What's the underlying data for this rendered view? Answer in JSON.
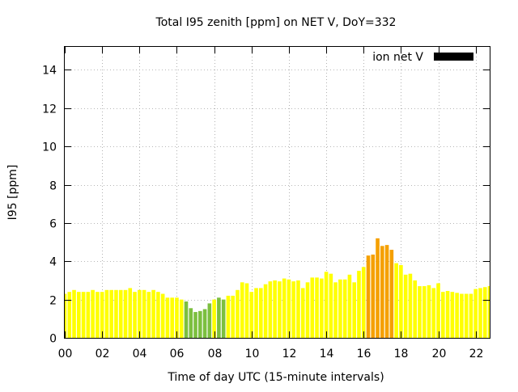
{
  "chart_data": {
    "type": "bar",
    "title": "Total I95 zenith [ppm] on NET V, DoY=332",
    "xlabel": "Time of day UTC (15-minute intervals)",
    "ylabel": "I95 [ppm]",
    "ylim": [
      0,
      15.2
    ],
    "xlim": [
      0,
      22.75
    ],
    "yticks": [
      0,
      2,
      4,
      6,
      8,
      10,
      12,
      14
    ],
    "xticks": [
      0,
      2,
      4,
      6,
      8,
      10,
      12,
      14,
      16,
      18,
      20,
      22
    ],
    "xtick_labels": [
      "00",
      "02",
      "04",
      "06",
      "08",
      "10",
      "12",
      "14",
      "16",
      "18",
      "20",
      "22"
    ],
    "grid": true,
    "legend": {
      "label": "ion net V",
      "color": "#000000",
      "placement": "top-right"
    },
    "bar_interval_hours": 0.25,
    "palette": {
      "yellow": "#ffff00",
      "green": "#7cbf3f",
      "orange": "#f5a000"
    },
    "bars": [
      {
        "x": 0.0,
        "value": 2.3,
        "color": "yellow"
      },
      {
        "x": 0.25,
        "value": 2.4,
        "color": "yellow"
      },
      {
        "x": 0.5,
        "value": 2.5,
        "color": "yellow"
      },
      {
        "x": 0.75,
        "value": 2.4,
        "color": "yellow"
      },
      {
        "x": 1.0,
        "value": 2.4,
        "color": "yellow"
      },
      {
        "x": 1.25,
        "value": 2.4,
        "color": "yellow"
      },
      {
        "x": 1.5,
        "value": 2.5,
        "color": "yellow"
      },
      {
        "x": 1.75,
        "value": 2.4,
        "color": "yellow"
      },
      {
        "x": 2.0,
        "value": 2.4,
        "color": "yellow"
      },
      {
        "x": 2.25,
        "value": 2.5,
        "color": "yellow"
      },
      {
        "x": 2.5,
        "value": 2.5,
        "color": "yellow"
      },
      {
        "x": 2.75,
        "value": 2.5,
        "color": "yellow"
      },
      {
        "x": 3.0,
        "value": 2.5,
        "color": "yellow"
      },
      {
        "x": 3.25,
        "value": 2.5,
        "color": "yellow"
      },
      {
        "x": 3.5,
        "value": 2.6,
        "color": "yellow"
      },
      {
        "x": 3.75,
        "value": 2.4,
        "color": "yellow"
      },
      {
        "x": 4.0,
        "value": 2.5,
        "color": "yellow"
      },
      {
        "x": 4.25,
        "value": 2.5,
        "color": "yellow"
      },
      {
        "x": 4.5,
        "value": 2.4,
        "color": "yellow"
      },
      {
        "x": 4.75,
        "value": 2.5,
        "color": "yellow"
      },
      {
        "x": 5.0,
        "value": 2.4,
        "color": "yellow"
      },
      {
        "x": 5.25,
        "value": 2.3,
        "color": "yellow"
      },
      {
        "x": 5.5,
        "value": 2.1,
        "color": "yellow"
      },
      {
        "x": 5.75,
        "value": 2.1,
        "color": "yellow"
      },
      {
        "x": 6.0,
        "value": 2.1,
        "color": "yellow"
      },
      {
        "x": 6.25,
        "value": 2.0,
        "color": "yellow"
      },
      {
        "x": 6.5,
        "value": 1.9,
        "color": "green"
      },
      {
        "x": 6.75,
        "value": 1.55,
        "color": "green"
      },
      {
        "x": 7.0,
        "value": 1.35,
        "color": "green"
      },
      {
        "x": 7.25,
        "value": 1.4,
        "color": "green"
      },
      {
        "x": 7.5,
        "value": 1.5,
        "color": "green"
      },
      {
        "x": 7.75,
        "value": 1.8,
        "color": "green"
      },
      {
        "x": 8.0,
        "value": 2.0,
        "color": "yellow"
      },
      {
        "x": 8.25,
        "value": 2.1,
        "color": "green"
      },
      {
        "x": 8.5,
        "value": 2.0,
        "color": "green"
      },
      {
        "x": 8.75,
        "value": 2.2,
        "color": "yellow"
      },
      {
        "x": 9.0,
        "value": 2.2,
        "color": "yellow"
      },
      {
        "x": 9.25,
        "value": 2.5,
        "color": "yellow"
      },
      {
        "x": 9.5,
        "value": 2.9,
        "color": "yellow"
      },
      {
        "x": 9.75,
        "value": 2.85,
        "color": "yellow"
      },
      {
        "x": 10.0,
        "value": 2.4,
        "color": "yellow"
      },
      {
        "x": 10.25,
        "value": 2.6,
        "color": "yellow"
      },
      {
        "x": 10.5,
        "value": 2.6,
        "color": "yellow"
      },
      {
        "x": 10.75,
        "value": 2.8,
        "color": "yellow"
      },
      {
        "x": 11.0,
        "value": 2.95,
        "color": "yellow"
      },
      {
        "x": 11.25,
        "value": 3.0,
        "color": "yellow"
      },
      {
        "x": 11.5,
        "value": 2.95,
        "color": "yellow"
      },
      {
        "x": 11.75,
        "value": 3.1,
        "color": "yellow"
      },
      {
        "x": 12.0,
        "value": 3.05,
        "color": "yellow"
      },
      {
        "x": 12.25,
        "value": 2.95,
        "color": "yellow"
      },
      {
        "x": 12.5,
        "value": 3.0,
        "color": "yellow"
      },
      {
        "x": 12.75,
        "value": 2.6,
        "color": "yellow"
      },
      {
        "x": 13.0,
        "value": 2.9,
        "color": "yellow"
      },
      {
        "x": 13.25,
        "value": 3.15,
        "color": "yellow"
      },
      {
        "x": 13.5,
        "value": 3.15,
        "color": "yellow"
      },
      {
        "x": 13.75,
        "value": 3.1,
        "color": "yellow"
      },
      {
        "x": 14.0,
        "value": 3.45,
        "color": "yellow"
      },
      {
        "x": 14.25,
        "value": 3.35,
        "color": "yellow"
      },
      {
        "x": 14.5,
        "value": 2.9,
        "color": "yellow"
      },
      {
        "x": 14.75,
        "value": 3.05,
        "color": "yellow"
      },
      {
        "x": 15.0,
        "value": 3.05,
        "color": "yellow"
      },
      {
        "x": 15.25,
        "value": 3.3,
        "color": "yellow"
      },
      {
        "x": 15.5,
        "value": 2.9,
        "color": "yellow"
      },
      {
        "x": 15.75,
        "value": 3.5,
        "color": "yellow"
      },
      {
        "x": 16.0,
        "value": 3.7,
        "color": "yellow"
      },
      {
        "x": 16.25,
        "value": 4.3,
        "color": "orange"
      },
      {
        "x": 16.5,
        "value": 4.35,
        "color": "orange"
      },
      {
        "x": 16.75,
        "value": 5.2,
        "color": "orange"
      },
      {
        "x": 17.0,
        "value": 4.8,
        "color": "orange"
      },
      {
        "x": 17.25,
        "value": 4.85,
        "color": "orange"
      },
      {
        "x": 17.5,
        "value": 4.6,
        "color": "orange"
      },
      {
        "x": 17.75,
        "value": 3.9,
        "color": "yellow"
      },
      {
        "x": 18.0,
        "value": 3.8,
        "color": "yellow"
      },
      {
        "x": 18.25,
        "value": 3.3,
        "color": "yellow"
      },
      {
        "x": 18.5,
        "value": 3.35,
        "color": "yellow"
      },
      {
        "x": 18.75,
        "value": 3.0,
        "color": "yellow"
      },
      {
        "x": 19.0,
        "value": 2.7,
        "color": "yellow"
      },
      {
        "x": 19.25,
        "value": 2.7,
        "color": "yellow"
      },
      {
        "x": 19.5,
        "value": 2.75,
        "color": "yellow"
      },
      {
        "x": 19.75,
        "value": 2.6,
        "color": "yellow"
      },
      {
        "x": 20.0,
        "value": 2.85,
        "color": "yellow"
      },
      {
        "x": 20.25,
        "value": 2.4,
        "color": "yellow"
      },
      {
        "x": 20.5,
        "value": 2.45,
        "color": "yellow"
      },
      {
        "x": 20.75,
        "value": 2.4,
        "color": "yellow"
      },
      {
        "x": 21.0,
        "value": 2.35,
        "color": "yellow"
      },
      {
        "x": 21.25,
        "value": 2.3,
        "color": "yellow"
      },
      {
        "x": 21.5,
        "value": 2.3,
        "color": "yellow"
      },
      {
        "x": 21.75,
        "value": 2.3,
        "color": "yellow"
      },
      {
        "x": 22.0,
        "value": 2.55,
        "color": "yellow"
      },
      {
        "x": 22.25,
        "value": 2.6,
        "color": "yellow"
      },
      {
        "x": 22.5,
        "value": 2.65,
        "color": "yellow"
      },
      {
        "x": 22.75,
        "value": 2.7,
        "color": "yellow"
      }
    ]
  }
}
